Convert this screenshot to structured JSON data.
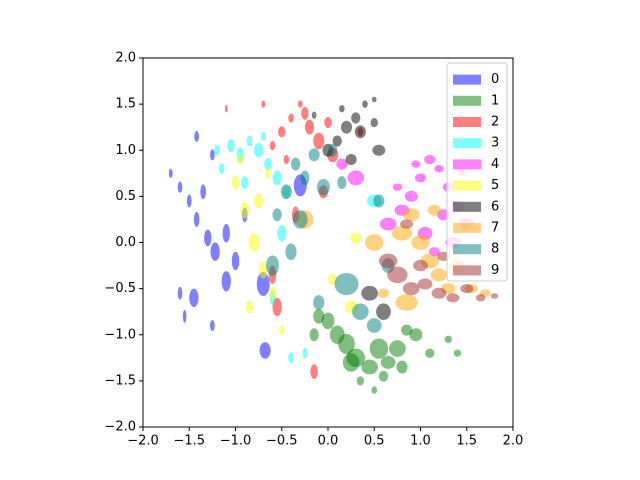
{
  "chart_data": {
    "type": "ellipse-scatter",
    "xlim": [
      -2,
      2
    ],
    "ylim": [
      -2,
      2
    ],
    "xticks": [
      {
        "value": -2,
        "label": "−2.0"
      },
      {
        "value": -1.5,
        "label": "−1.5"
      },
      {
        "value": -1,
        "label": "−1.0"
      },
      {
        "value": -0.5,
        "label": "−0.5"
      },
      {
        "value": 0,
        "label": "0.0"
      },
      {
        "value": 0.5,
        "label": "0.5"
      },
      {
        "value": 1,
        "label": "1.0"
      },
      {
        "value": 1.5,
        "label": "1.5"
      },
      {
        "value": 2,
        "label": "2.0"
      }
    ],
    "yticks": [
      {
        "value": -2,
        "label": "−2.0"
      },
      {
        "value": -1.5,
        "label": "−1.5"
      },
      {
        "value": -1,
        "label": "−1.0"
      },
      {
        "value": -0.5,
        "label": "−0.5"
      },
      {
        "value": 0,
        "label": "0.0"
      },
      {
        "value": 0.5,
        "label": "0.5"
      },
      {
        "value": 1,
        "label": "1.0"
      },
      {
        "value": 1.5,
        "label": "1.5"
      },
      {
        "value": 2,
        "label": "2.0"
      }
    ],
    "alpha": 0.5,
    "legend": "upper right",
    "series": [
      {
        "name": "0",
        "color": "#0000ff",
        "x": [
          -1.7,
          -1.6,
          -1.5,
          -1.42,
          -1.3,
          -1.22,
          -1.1,
          -1.0,
          -0.9,
          -1.45,
          -1.6,
          -1.25,
          -0.7,
          -0.68,
          -0.3,
          -1.42,
          -1.25,
          -1.1,
          -1.55,
          -1.35
        ],
        "y": [
          0.75,
          0.6,
          0.45,
          0.25,
          0.05,
          -0.1,
          0.1,
          -0.2,
          0.3,
          -0.6,
          -0.55,
          -0.9,
          -0.45,
          -1.17,
          0.62,
          1.15,
          0.95,
          -0.42,
          -0.8,
          0.55
        ],
        "w": [
          0.04,
          0.05,
          0.05,
          0.06,
          0.08,
          0.1,
          0.08,
          0.08,
          0.06,
          0.1,
          0.05,
          0.05,
          0.14,
          0.12,
          0.14,
          0.05,
          0.05,
          0.1,
          0.04,
          0.06
        ],
        "h": [
          0.1,
          0.12,
          0.14,
          0.16,
          0.18,
          0.2,
          0.2,
          0.2,
          0.16,
          0.2,
          0.14,
          0.12,
          0.26,
          0.18,
          0.24,
          0.12,
          0.12,
          0.22,
          0.14,
          0.16
        ]
      },
      {
        "name": "1",
        "color": "#008000",
        "x": [
          0.0,
          0.1,
          0.2,
          0.3,
          0.45,
          0.55,
          0.65,
          0.75,
          0.85,
          0.95,
          1.1,
          1.3,
          -0.1,
          0.35,
          0.6,
          0.8,
          0.5,
          0.25,
          1.4,
          -0.15
        ],
        "y": [
          -0.85,
          -1.0,
          -1.1,
          -1.25,
          -1.35,
          -1.15,
          -1.3,
          -1.15,
          -0.95,
          -1.0,
          -1.2,
          -1.05,
          -0.8,
          -1.5,
          -1.45,
          -1.35,
          -1.6,
          -1.3,
          -1.2,
          -1.0
        ],
        "w": [
          0.14,
          0.16,
          0.18,
          0.2,
          0.18,
          0.2,
          0.16,
          0.18,
          0.12,
          0.14,
          0.1,
          0.08,
          0.12,
          0.08,
          0.1,
          0.12,
          0.06,
          0.18,
          0.08,
          0.1
        ],
        "h": [
          0.18,
          0.2,
          0.22,
          0.2,
          0.16,
          0.22,
          0.14,
          0.18,
          0.12,
          0.14,
          0.1,
          0.08,
          0.16,
          0.1,
          0.12,
          0.14,
          0.08,
          0.2,
          0.08,
          0.14
        ]
      },
      {
        "name": "2",
        "color": "#ff0000",
        "x": [
          -0.6,
          -0.5,
          -0.4,
          -0.3,
          -0.2,
          -0.1,
          0.0,
          -0.45,
          -0.25,
          0.35,
          -0.7,
          -0.05,
          -0.55,
          -0.35,
          -1.1,
          -0.6,
          -0.15,
          0.05
        ],
        "y": [
          1.05,
          1.2,
          1.35,
          1.5,
          1.25,
          1.1,
          1.3,
          0.9,
          1.4,
          1.2,
          1.5,
          0.55,
          -0.7,
          0.3,
          1.45,
          -0.35,
          -1.4,
          0.95
        ],
        "w": [
          0.06,
          0.08,
          0.06,
          0.05,
          0.1,
          0.12,
          0.08,
          0.06,
          0.08,
          0.06,
          0.04,
          0.1,
          0.1,
          0.08,
          0.03,
          0.08,
          0.08,
          0.12
        ],
        "h": [
          0.1,
          0.12,
          0.1,
          0.08,
          0.16,
          0.18,
          0.12,
          0.1,
          0.14,
          0.1,
          0.08,
          0.14,
          0.2,
          0.18,
          0.08,
          0.2,
          0.16,
          0.16
        ]
      },
      {
        "name": "3",
        "color": "#00ffff",
        "x": [
          -1.2,
          -1.05,
          -0.95,
          -0.85,
          -0.75,
          -0.65,
          -0.55,
          -0.45,
          -1.15,
          -0.9,
          -0.7,
          -0.5,
          -0.4,
          0.5,
          -0.6,
          -0.25
        ],
        "y": [
          1.0,
          1.05,
          0.95,
          1.1,
          1.0,
          0.85,
          0.7,
          0.55,
          0.8,
          0.65,
          1.15,
          0.1,
          -1.25,
          0.45,
          -0.6,
          -1.2
        ],
        "w": [
          0.06,
          0.08,
          0.08,
          0.06,
          0.1,
          0.08,
          0.1,
          0.08,
          0.06,
          0.08,
          0.05,
          0.1,
          0.06,
          0.16,
          0.06,
          0.05
        ],
        "h": [
          0.12,
          0.14,
          0.16,
          0.12,
          0.16,
          0.14,
          0.16,
          0.14,
          0.12,
          0.14,
          0.1,
          0.18,
          0.12,
          0.14,
          0.16,
          0.12
        ]
      },
      {
        "name": "4",
        "color": "#ff00ff",
        "x": [
          0.65,
          0.8,
          0.9,
          1.0,
          1.1,
          1.2,
          1.3,
          1.4,
          1.5,
          0.75,
          1.05,
          1.25,
          1.35,
          0.95,
          0.3,
          0.15,
          1.15,
          1.45
        ],
        "y": [
          0.2,
          0.35,
          0.5,
          0.7,
          0.9,
          0.8,
          0.6,
          0.4,
          0.2,
          0.6,
          0.1,
          0.3,
          0.0,
          0.85,
          0.7,
          0.85,
          -0.1,
          0.75
        ],
        "w": [
          0.18,
          0.16,
          0.14,
          0.12,
          0.12,
          0.1,
          0.12,
          0.14,
          0.16,
          0.1,
          0.16,
          0.14,
          0.16,
          0.1,
          0.18,
          0.12,
          0.12,
          0.08
        ],
        "h": [
          0.14,
          0.12,
          0.12,
          0.1,
          0.1,
          0.08,
          0.1,
          0.12,
          0.14,
          0.08,
          0.14,
          0.12,
          0.12,
          0.08,
          0.16,
          0.12,
          0.1,
          0.06
        ]
      },
      {
        "name": "5",
        "color": "#ffff00",
        "x": [
          -1.0,
          -0.9,
          -0.8,
          -0.7,
          -0.6,
          -0.95,
          -0.75,
          -0.85,
          -0.65,
          0.3,
          0.25,
          -0.5,
          0.05
        ],
        "y": [
          0.65,
          0.35,
          0.0,
          -0.3,
          -0.55,
          0.9,
          0.45,
          -0.7,
          0.75,
          0.05,
          -0.7,
          -0.95,
          -0.4
        ],
        "w": [
          0.08,
          0.1,
          0.12,
          0.1,
          0.08,
          0.06,
          0.1,
          0.08,
          0.06,
          0.12,
          0.14,
          0.06,
          0.1
        ],
        "h": [
          0.16,
          0.18,
          0.2,
          0.18,
          0.14,
          0.12,
          0.16,
          0.14,
          0.12,
          0.12,
          0.14,
          0.1,
          0.12
        ]
      },
      {
        "name": "6",
        "color": "#000000",
        "x": [
          0.0,
          0.1,
          0.2,
          0.3,
          0.4,
          0.5,
          0.55,
          0.35,
          0.15,
          0.25,
          -0.15,
          0.45,
          0.6,
          0.5
        ],
        "y": [
          1.0,
          1.1,
          1.25,
          1.35,
          1.5,
          1.55,
          1.0,
          1.2,
          1.45,
          0.9,
          1.38,
          -0.55,
          -0.75,
          1.3
        ],
        "w": [
          0.12,
          0.1,
          0.12,
          0.1,
          0.06,
          0.05,
          0.14,
          0.12,
          0.06,
          0.12,
          0.05,
          0.18,
          0.16,
          0.08
        ],
        "h": [
          0.14,
          0.12,
          0.14,
          0.12,
          0.08,
          0.06,
          0.12,
          0.14,
          0.08,
          0.12,
          0.08,
          0.16,
          0.18,
          0.1
        ]
      },
      {
        "name": "7",
        "color": "#ffa500",
        "x": [
          0.8,
          0.9,
          1.0,
          1.1,
          1.2,
          1.3,
          1.4,
          1.55,
          1.7,
          0.5,
          -0.25,
          0.85,
          1.15,
          0.6
        ],
        "y": [
          0.1,
          0.3,
          0.0,
          -0.2,
          -0.35,
          -0.5,
          -0.25,
          -0.5,
          -0.55,
          0.0,
          0.25,
          -0.65,
          0.35,
          -0.55
        ],
        "w": [
          0.22,
          0.18,
          0.2,
          0.2,
          0.18,
          0.16,
          0.18,
          0.14,
          0.12,
          0.2,
          0.18,
          0.24,
          0.14,
          0.12
        ],
        "h": [
          0.16,
          0.14,
          0.16,
          0.16,
          0.14,
          0.12,
          0.14,
          0.1,
          0.08,
          0.18,
          0.2,
          0.18,
          0.12,
          0.1
        ]
      },
      {
        "name": "8",
        "color": "#008080",
        "x": [
          -0.55,
          -0.45,
          -0.35,
          -0.25,
          -0.15,
          -0.05,
          0.05,
          0.2,
          0.35,
          0.5,
          -0.4,
          -0.6,
          -0.3,
          0.55,
          0.65,
          -0.1,
          0.15
        ],
        "y": [
          0.3,
          0.55,
          0.85,
          0.7,
          0.95,
          0.6,
          1.0,
          -0.45,
          -0.75,
          -0.9,
          -0.1,
          -0.25,
          0.25,
          0.45,
          -0.25,
          -0.65,
          0.65
        ],
        "w": [
          0.1,
          0.12,
          0.1,
          0.1,
          0.12,
          0.14,
          0.1,
          0.26,
          0.18,
          0.16,
          0.12,
          0.14,
          0.16,
          0.12,
          0.14,
          0.12,
          0.1
        ],
        "h": [
          0.14,
          0.16,
          0.14,
          0.16,
          0.14,
          0.18,
          0.14,
          0.24,
          0.18,
          0.16,
          0.18,
          0.22,
          0.2,
          0.14,
          0.16,
          0.16,
          0.14
        ]
      },
      {
        "name": "9",
        "color": "#a52a2a",
        "x": [
          0.65,
          0.75,
          0.9,
          1.05,
          1.2,
          1.35,
          1.5,
          1.65,
          1.8,
          1.0,
          1.25,
          0.85
        ],
        "y": [
          -0.2,
          -0.35,
          -0.5,
          -0.45,
          -0.55,
          -0.6,
          -0.5,
          -0.6,
          -0.58,
          -0.25,
          -0.15,
          0.2
        ],
        "w": [
          0.2,
          0.22,
          0.18,
          0.16,
          0.16,
          0.14,
          0.14,
          0.1,
          0.08,
          0.16,
          0.14,
          0.14
        ],
        "h": [
          0.16,
          0.18,
          0.14,
          0.12,
          0.12,
          0.1,
          0.1,
          0.08,
          0.06,
          0.12,
          0.1,
          0.1
        ]
      }
    ]
  }
}
